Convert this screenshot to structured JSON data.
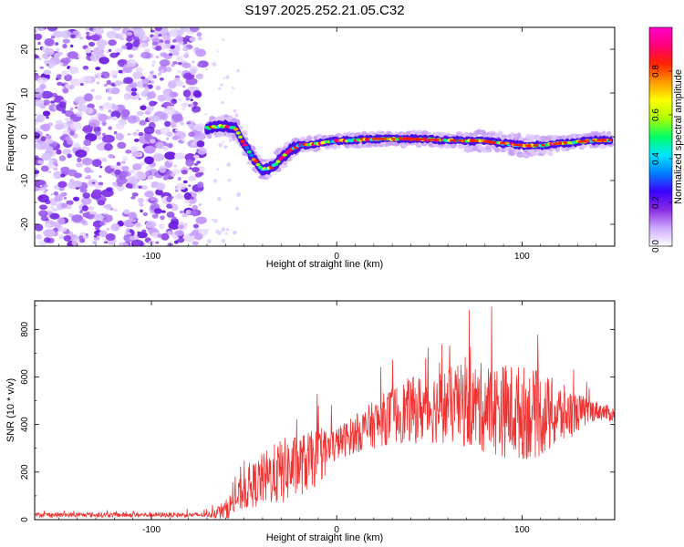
{
  "title": "S197.2025.252.21.05.C32",
  "chart_data": [
    {
      "type": "heatmap",
      "xlabel": "Height of straight line (km)",
      "ylabel": "Frequency (Hz)",
      "xlim": [
        -163,
        150
      ],
      "ylim": [
        -25,
        25
      ],
      "xticks": [
        {
          "value": -100,
          "label": "-100"
        },
        {
          "value": 0,
          "label": "0"
        },
        {
          "value": 100,
          "label": "100"
        }
      ],
      "yticks": [
        {
          "value": 20,
          "label": "20"
        },
        {
          "value": 10,
          "label": "10"
        },
        {
          "value": 0,
          "label": "0"
        },
        {
          "value": -10,
          "label": "-10"
        },
        {
          "value": -20,
          "label": "-20"
        }
      ],
      "noise_region_x": [
        -163,
        -72
      ],
      "ridge": [
        {
          "x": -70,
          "f": 2.0
        },
        {
          "x": -60,
          "f": 2.5
        },
        {
          "x": -55,
          "f": 2.0
        },
        {
          "x": -50,
          "f": -1.5
        },
        {
          "x": -45,
          "f": -5.0
        },
        {
          "x": -40,
          "f": -7.5
        },
        {
          "x": -35,
          "f": -7.0
        },
        {
          "x": -30,
          "f": -5.0
        },
        {
          "x": -25,
          "f": -3.0
        },
        {
          "x": -20,
          "f": -2.0
        },
        {
          "x": -10,
          "f": -1.5
        },
        {
          "x": 0,
          "f": -1.0
        },
        {
          "x": 20,
          "f": -0.5
        },
        {
          "x": 40,
          "f": -0.5
        },
        {
          "x": 60,
          "f": -0.8
        },
        {
          "x": 80,
          "f": -1.0
        },
        {
          "x": 90,
          "f": -1.5
        },
        {
          "x": 100,
          "f": -2.0
        },
        {
          "x": 110,
          "f": -2.0
        },
        {
          "x": 120,
          "f": -1.5
        },
        {
          "x": 130,
          "f": -1.2
        },
        {
          "x": 140,
          "f": -0.8
        },
        {
          "x": 148,
          "f": -0.8
        }
      ],
      "colorbar": {
        "label": "Normalized spectral amplitude",
        "range": [
          0,
          1
        ],
        "ticks": [
          {
            "value": 0.0,
            "label": "0.0"
          },
          {
            "value": 0.2,
            "label": "0.2"
          },
          {
            "value": 0.4,
            "label": "0.4"
          },
          {
            "value": 0.6,
            "label": "0.6"
          },
          {
            "value": 0.8,
            "label": "0.8"
          }
        ],
        "colors": [
          "#ffffff",
          "#cfa9ff",
          "#8a2be2",
          "#3b00ff",
          "#0080ff",
          "#00e5ff",
          "#00ff66",
          "#aaff00",
          "#ffff00",
          "#ff9900",
          "#ff2200",
          "#ff0077",
          "#ff00cc"
        ]
      }
    },
    {
      "type": "line",
      "xlabel": "Height of straight line (km)",
      "ylabel": "SNR (10 * v/v)",
      "xlim": [
        -163,
        150
      ],
      "ylim": [
        0,
        920
      ],
      "xticks": [
        {
          "value": -100,
          "label": "-100"
        },
        {
          "value": 0,
          "label": "0"
        },
        {
          "value": 100,
          "label": "100"
        }
      ],
      "yticks": [
        {
          "value": 0,
          "label": "0"
        },
        {
          "value": 200,
          "label": "200"
        },
        {
          "value": 400,
          "label": "400"
        },
        {
          "value": 600,
          "label": "600"
        },
        {
          "value": 800,
          "label": "800"
        }
      ],
      "series": [
        {
          "name": "SNR",
          "color": "#ee3333",
          "envelope": [
            {
              "x": -163,
              "mean": 20,
              "spread": 10
            },
            {
              "x": -70,
              "mean": 20,
              "spread": 10
            },
            {
              "x": -60,
              "mean": 40,
              "spread": 40
            },
            {
              "x": -50,
              "mean": 120,
              "spread": 80
            },
            {
              "x": -40,
              "mean": 170,
              "spread": 110
            },
            {
              "x": -30,
              "mean": 200,
              "spread": 140
            },
            {
              "x": -20,
              "mean": 230,
              "spread": 130
            },
            {
              "x": -10,
              "mean": 260,
              "spread": 120
            },
            {
              "x": 0,
              "mean": 320,
              "spread": 70
            },
            {
              "x": 10,
              "mean": 360,
              "spread": 80
            },
            {
              "x": 20,
              "mean": 400,
              "spread": 100
            },
            {
              "x": 30,
              "mean": 440,
              "spread": 120
            },
            {
              "x": 40,
              "mean": 460,
              "spread": 140
            },
            {
              "x": 50,
              "mean": 470,
              "spread": 150
            },
            {
              "x": 60,
              "mean": 480,
              "spread": 160
            },
            {
              "x": 70,
              "mean": 480,
              "spread": 180
            },
            {
              "x": 80,
              "mean": 470,
              "spread": 190
            },
            {
              "x": 90,
              "mean": 460,
              "spread": 200
            },
            {
              "x": 100,
              "mean": 450,
              "spread": 200
            },
            {
              "x": 110,
              "mean": 440,
              "spread": 180
            },
            {
              "x": 120,
              "mean": 440,
              "spread": 140
            },
            {
              "x": 130,
              "mean": 450,
              "spread": 80
            },
            {
              "x": 140,
              "mean": 460,
              "spread": 40
            },
            {
              "x": 150,
              "mean": 440,
              "spread": 30
            }
          ]
        }
      ]
    }
  ]
}
